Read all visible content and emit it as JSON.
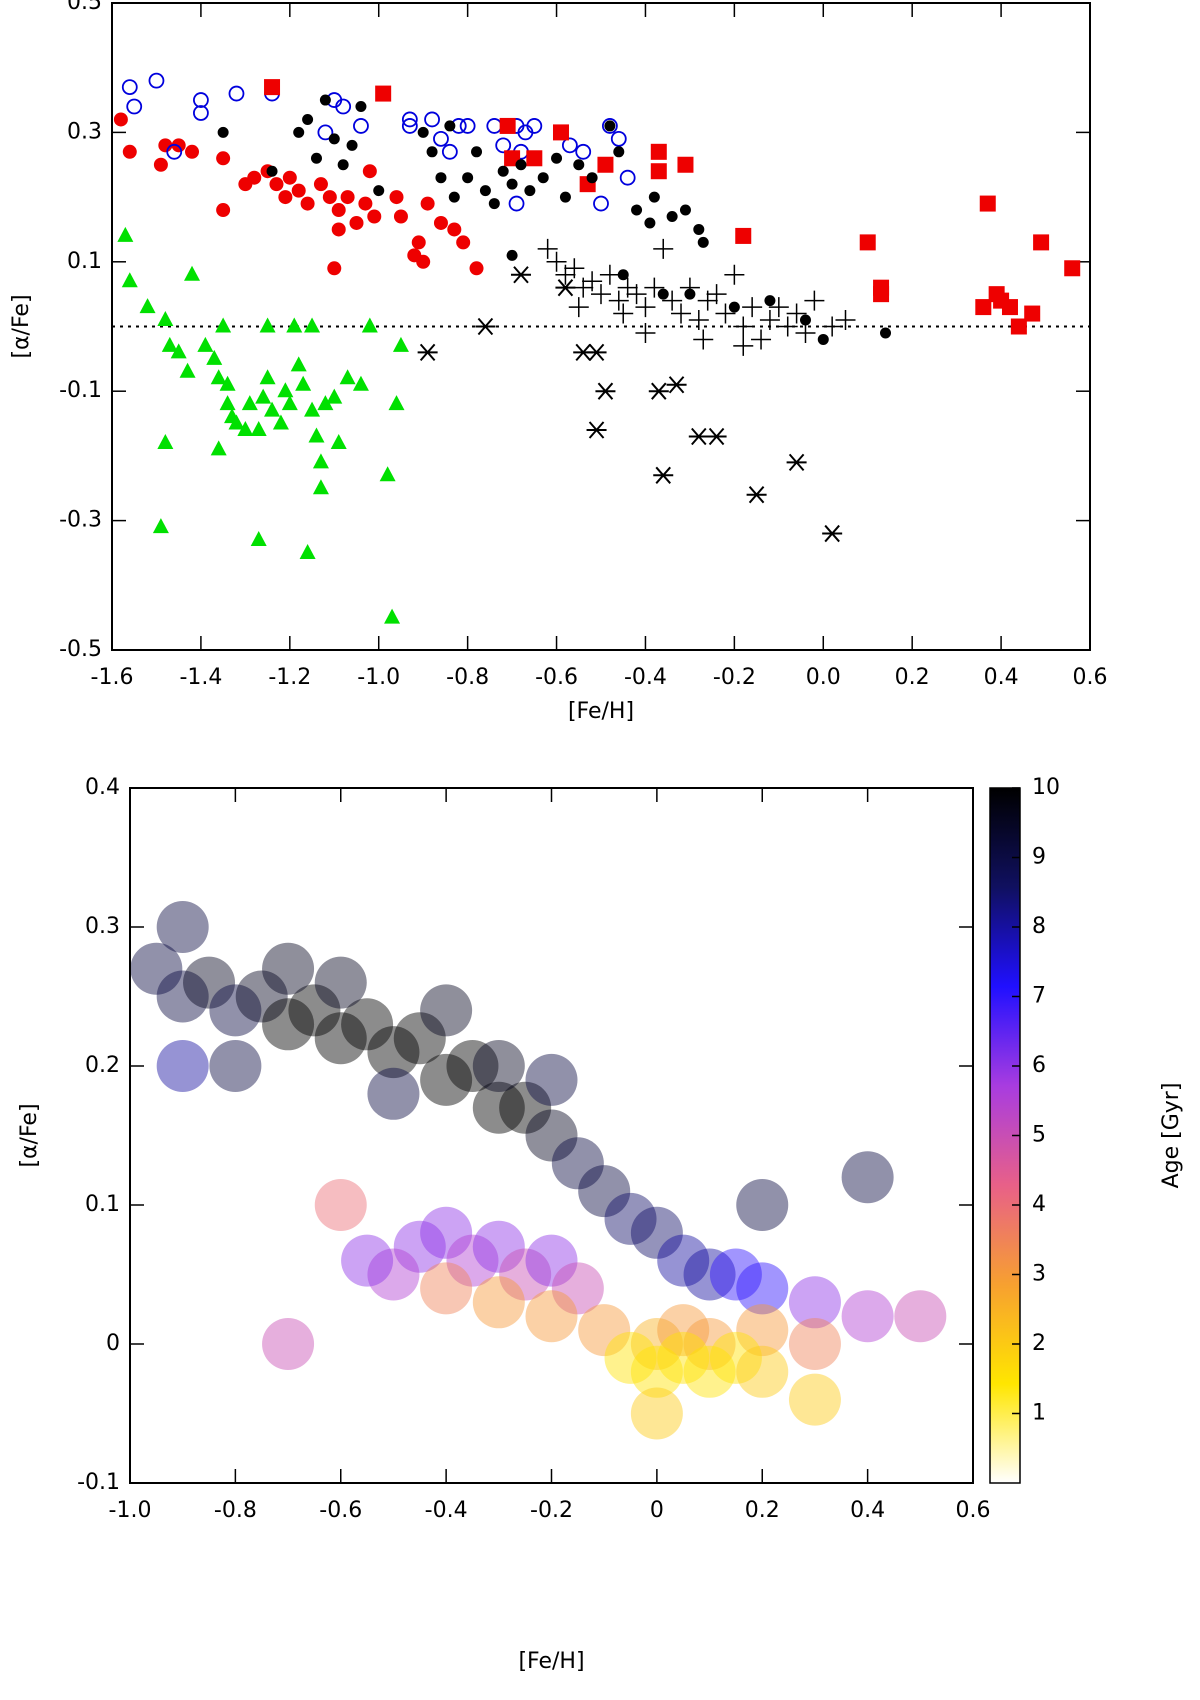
{
  "chart_data": [
    {
      "type": "scatter",
      "xlabel": "[Fe/H]",
      "ylabel": "[α/Fe]",
      "xlim": [
        -1.6,
        0.6
      ],
      "ylim": [
        -0.5,
        0.5
      ],
      "xticks": [
        -1.6,
        -1.4,
        -1.2,
        {
          "value": -1,
          "label": "-1.0"
        },
        -0.8,
        -0.6,
        -0.4,
        -0.2,
        {
          "value": 0,
          "label": "0.0"
        },
        0.2,
        0.4,
        0.6
      ],
      "yticks": [
        -0.5,
        -0.3,
        -0.1,
        0.1,
        0.3,
        0.5
      ],
      "hline": 0,
      "series": [
        {
          "marker": "triangle",
          "color": "#00e000",
          "x": [
            -1.57,
            -1.56,
            -1.52,
            -1.48,
            -1.47,
            -1.45,
            -1.43,
            -1.42,
            -1.39,
            -1.37,
            -1.36,
            -1.34,
            -1.34,
            -1.33,
            -1.32,
            -1.3,
            -1.29,
            -1.27,
            -1.26,
            -1.25,
            -1.24,
            -1.22,
            -1.21,
            -1.2,
            -1.19,
            -1.18,
            -1.17,
            -1.15,
            -1.14,
            -1.13,
            -1.12,
            -1.1,
            -1.09,
            -1.07,
            -1.04,
            -1.02,
            -0.98,
            -0.96,
            -0.95,
            -1.48,
            -1.36,
            -1.25,
            -1.15,
            -1.27,
            -1.16,
            -1.49,
            -0.97,
            -1.13,
            -1.35
          ],
          "values": [
            0.14,
            0.07,
            0.03,
            0.01,
            -0.03,
            -0.04,
            -0.07,
            0.08,
            -0.03,
            -0.05,
            -0.08,
            -0.09,
            -0.12,
            -0.14,
            -0.15,
            -0.16,
            -0.12,
            -0.16,
            -0.11,
            -0.08,
            -0.13,
            -0.15,
            -0.1,
            -0.12,
            0.0,
            -0.06,
            -0.09,
            -0.13,
            -0.17,
            -0.21,
            -0.12,
            -0.11,
            -0.18,
            -0.08,
            -0.09,
            0.0,
            -0.23,
            -0.12,
            -0.03,
            -0.18,
            -0.19,
            0.0,
            0.0,
            -0.33,
            -0.35,
            -0.31,
            -0.45,
            -0.25,
            0.0
          ]
        },
        {
          "marker": "circle",
          "color": "#ee0000",
          "x": [
            -1.58,
            -1.56,
            -1.49,
            -1.48,
            -1.45,
            -1.42,
            -1.35,
            -1.35,
            -1.3,
            -1.28,
            -1.25,
            -1.23,
            -1.21,
            -1.2,
            -1.18,
            -1.16,
            -1.13,
            -1.11,
            -1.09,
            -1.07,
            -1.05,
            -1.03,
            -1.02,
            -1.01,
            -0.96,
            -0.95,
            -0.92,
            -0.91,
            -0.89,
            -0.86,
            -0.83,
            -0.81,
            -0.78,
            -1.1,
            -1.09,
            -0.9
          ],
          "values": [
            0.32,
            0.27,
            0.25,
            0.28,
            0.28,
            0.27,
            0.26,
            0.18,
            0.22,
            0.23,
            0.24,
            0.22,
            0.2,
            0.23,
            0.21,
            0.19,
            0.22,
            0.2,
            0.18,
            0.2,
            0.16,
            0.19,
            0.24,
            0.17,
            0.2,
            0.17,
            0.11,
            0.13,
            0.19,
            0.16,
            0.15,
            0.13,
            0.09,
            0.09,
            0.15,
            0.1
          ]
        },
        {
          "marker": "circle-open",
          "color": "#0000dd",
          "x": [
            -1.56,
            -1.55,
            -1.5,
            -1.4,
            -1.4,
            -1.32,
            -1.24,
            -1.12,
            -1.1,
            -1.08,
            -1.04,
            -0.93,
            -0.93,
            -0.88,
            -0.86,
            -0.84,
            -0.82,
            -0.8,
            -0.74,
            -0.72,
            -0.69,
            -0.68,
            -0.67,
            -0.65,
            -0.69,
            -0.57,
            -0.54,
            -0.5,
            -0.48,
            -0.46,
            -0.44,
            -1.46
          ],
          "values": [
            0.37,
            0.34,
            0.38,
            0.35,
            0.33,
            0.36,
            0.36,
            0.3,
            0.35,
            0.34,
            0.31,
            0.32,
            0.31,
            0.32,
            0.29,
            0.27,
            0.31,
            0.31,
            0.31,
            0.28,
            0.31,
            0.27,
            0.3,
            0.31,
            0.19,
            0.28,
            0.27,
            0.19,
            0.31,
            0.29,
            0.23,
            0.27
          ]
        },
        {
          "marker": "square",
          "color": "#ee0000",
          "x": [
            -1.24,
            -0.99,
            -0.71,
            -0.7,
            -0.65,
            -0.59,
            -0.53,
            -0.49,
            -0.37,
            -0.37,
            -0.31,
            -0.18,
            0.1,
            0.13,
            0.13,
            0.36,
            0.37,
            0.39,
            0.4,
            0.42,
            0.44,
            0.47,
            0.49,
            0.56
          ],
          "values": [
            0.37,
            0.36,
            0.31,
            0.26,
            0.26,
            0.3,
            0.22,
            0.25,
            0.24,
            0.27,
            0.25,
            0.14,
            0.13,
            0.05,
            0.06,
            0.03,
            0.19,
            0.05,
            0.04,
            0.03,
            0.0,
            0.02,
            0.13,
            0.09
          ]
        },
        {
          "marker": "dot",
          "color": "#000000",
          "x": [
            -1.35,
            -1.24,
            -1.18,
            -1.16,
            -1.14,
            -1.12,
            -1.1,
            -1.08,
            -1.06,
            -1.04,
            -1.0,
            -0.9,
            -0.88,
            -0.86,
            -0.84,
            -0.83,
            -0.8,
            -0.78,
            -0.76,
            -0.74,
            -0.72,
            -0.7,
            -0.68,
            -0.66,
            -0.63,
            -0.6,
            -0.58,
            -0.55,
            -0.52,
            -0.48,
            -0.46,
            -0.42,
            -0.39,
            -0.38,
            -0.34,
            -0.31,
            -0.28,
            -0.27,
            -0.7,
            -0.45,
            -0.3,
            -0.2,
            -0.12,
            -0.04,
            0.0,
            0.14,
            -0.36
          ],
          "values": [
            0.3,
            0.24,
            0.3,
            0.32,
            0.26,
            0.35,
            0.29,
            0.25,
            0.28,
            0.34,
            0.21,
            0.3,
            0.27,
            0.23,
            0.31,
            0.2,
            0.23,
            0.27,
            0.21,
            0.19,
            0.24,
            0.22,
            0.25,
            0.21,
            0.23,
            0.26,
            0.2,
            0.25,
            0.23,
            0.31,
            0.27,
            0.18,
            0.16,
            0.2,
            0.17,
            0.18,
            0.15,
            0.13,
            0.11,
            0.08,
            0.05,
            0.03,
            0.04,
            0.01,
            -0.02,
            -0.01,
            0.05
          ]
        },
        {
          "marker": "plus",
          "color": "#000000",
          "x": [
            -0.62,
            -0.6,
            -0.58,
            -0.56,
            -0.54,
            -0.52,
            -0.5,
            -0.48,
            -0.46,
            -0.44,
            -0.42,
            -0.4,
            -0.38,
            -0.36,
            -0.34,
            -0.32,
            -0.3,
            -0.28,
            -0.26,
            -0.24,
            -0.22,
            -0.2,
            -0.18,
            -0.16,
            -0.14,
            -0.12,
            -0.1,
            -0.08,
            -0.06,
            -0.04,
            -0.02,
            0.02,
            0.05,
            -0.55,
            -0.4,
            -0.27,
            -0.18,
            -0.45
          ],
          "values": [
            0.12,
            0.1,
            0.08,
            0.09,
            0.06,
            0.07,
            0.05,
            0.08,
            0.04,
            0.06,
            0.05,
            0.03,
            0.06,
            0.12,
            0.04,
            0.02,
            0.06,
            0.01,
            0.04,
            0.05,
            0.02,
            0.08,
            0.0,
            0.03,
            -0.02,
            0.01,
            0.03,
            0.0,
            0.02,
            -0.01,
            0.04,
            0.0,
            0.01,
            0.03,
            -0.01,
            -0.02,
            -0.03,
            0.02
          ]
        },
        {
          "marker": "asterisk",
          "color": "#000000",
          "x": [
            -0.89,
            -0.76,
            -0.68,
            -0.58,
            -0.54,
            -0.51,
            -0.49,
            -0.51,
            -0.37,
            -0.33,
            -0.36,
            -0.28,
            -0.24,
            -0.15,
            -0.06,
            0.02
          ],
          "values": [
            -0.04,
            0.0,
            0.08,
            0.06,
            -0.04,
            -0.04,
            -0.1,
            -0.16,
            -0.1,
            -0.09,
            -0.23,
            -0.17,
            -0.17,
            -0.26,
            -0.21,
            -0.32
          ]
        }
      ]
    },
    {
      "type": "density",
      "xlabel": "[Fe/H]",
      "ylabel": "[α/Fe]",
      "colorbar_label": "Age [Gyr]",
      "xlim": [
        -1,
        0.6
      ],
      "ylim": [
        -0.1,
        0.4
      ],
      "clim": [
        0,
        10
      ],
      "xticks": [
        {
          "value": -1,
          "label": "-1.0"
        },
        -0.8,
        -0.6,
        -0.4,
        -0.2,
        0,
        0.2,
        0.4,
        0.6
      ],
      "yticks": [
        -0.1,
        0,
        0.1,
        0.2,
        0.3,
        0.4
      ],
      "cticks": [
        1,
        2,
        3,
        4,
        5,
        6,
        7,
        8,
        9,
        10
      ],
      "colormap": [
        "#ffffff",
        "#ffe600",
        "#f7a030",
        "#e86088",
        "#a83ce0",
        "#2010ff",
        "#101060",
        "#000000"
      ],
      "x": [
        -0.95,
        -0.9,
        -0.85,
        -0.8,
        -0.75,
        -0.7,
        -0.65,
        -0.6,
        -0.55,
        -0.5,
        -0.45,
        -0.4,
        -0.35,
        -0.3,
        -0.25,
        -0.2,
        -0.15,
        -0.1,
        -0.05,
        0,
        0.05,
        0.1,
        -0.7,
        -0.6,
        -0.5,
        -0.4,
        -0.3,
        -0.2,
        -0.9,
        -0.8,
        -0.45,
        -0.4,
        -0.35,
        -0.3,
        -0.25,
        -0.2,
        -0.5,
        -0.55,
        -0.15,
        0.15,
        0.2,
        0.3,
        0.4,
        -0.3,
        -0.2,
        -0.1,
        0,
        0.05,
        0.1,
        0.2,
        0.3,
        -0.4,
        -0.05,
        0.05,
        0.1,
        0.15,
        0.2,
        0,
        -0.6,
        -0.7,
        0,
        0.3,
        0.5,
        -0.9,
        0.2,
        0.4
      ],
      "values": [
        0.27,
        0.25,
        0.26,
        0.24,
        0.25,
        0.23,
        0.24,
        0.22,
        0.23,
        0.21,
        0.22,
        0.19,
        0.2,
        0.17,
        0.17,
        0.15,
        0.13,
        0.11,
        0.09,
        0.08,
        0.06,
        0.05,
        0.27,
        0.26,
        0.18,
        0.24,
        0.2,
        0.19,
        0.3,
        0.2,
        0.07,
        0.08,
        0.06,
        0.07,
        0.05,
        0.06,
        0.05,
        0.06,
        0.04,
        0.05,
        0.04,
        0.03,
        0.02,
        0.03,
        0.02,
        0.01,
        0,
        0.01,
        0,
        0.01,
        0,
        0.04,
        -0.01,
        -0.01,
        -0.02,
        -0.01,
        -0.02,
        -0.02,
        0.1,
        0,
        -0.05,
        -0.04,
        0.02,
        0.2,
        0.1,
        0.12
      ],
      "c": [
        9,
        9,
        9.5,
        9,
        9.5,
        10,
        10,
        10,
        10,
        10,
        10,
        10,
        10,
        10,
        10,
        9.5,
        9,
        9,
        8.5,
        8.5,
        8,
        8,
        9.5,
        9.5,
        9,
        9.5,
        9.5,
        9,
        9,
        9,
        6,
        6,
        5.5,
        6,
        5,
        6,
        5.5,
        6,
        5,
        7,
        7,
        6,
        5.5,
        3,
        3,
        3,
        2.5,
        3,
        3,
        3,
        3.5,
        3.5,
        1.5,
        1.5,
        1.5,
        1.5,
        2,
        1.5,
        4,
        5,
        2,
        2,
        5,
        8,
        9,
        9
      ]
    }
  ]
}
